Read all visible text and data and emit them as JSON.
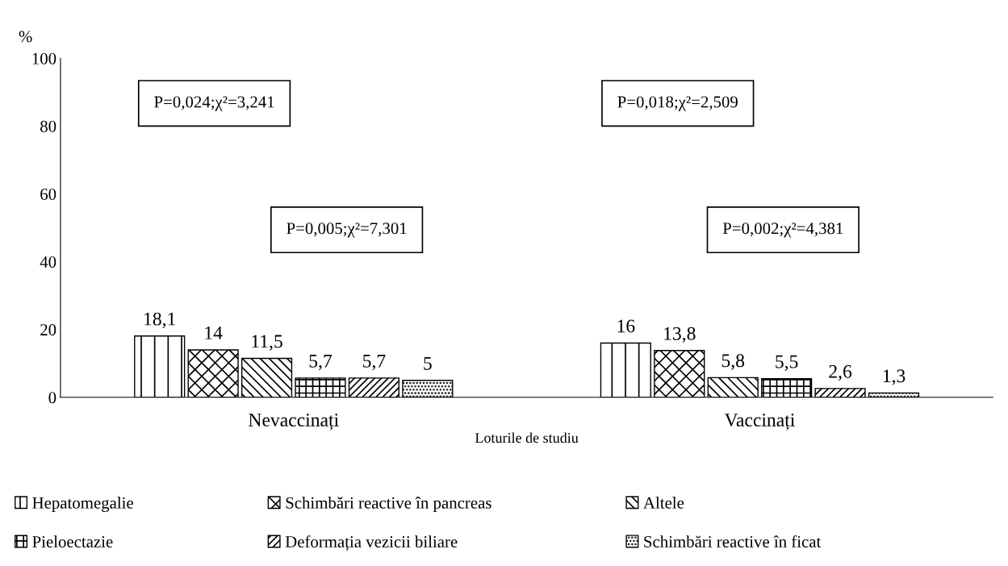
{
  "chart_data": {
    "type": "bar",
    "ylabel": "%",
    "xlabel": "Loturile de studiu",
    "categories": [
      "Nevaccinați",
      "Vaccinați"
    ],
    "series": [
      {
        "name": "Hepatomegalie",
        "color": "#000000",
        "values": [
          18.1,
          16
        ],
        "value_labels": [
          "18,1",
          "16"
        ]
      },
      {
        "name": "Schimbări reactive în pancreas",
        "color": "#000000",
        "values": [
          14,
          13.8
        ],
        "value_labels": [
          "14",
          "13,8"
        ]
      },
      {
        "name": "Altele",
        "color": "#000000",
        "values": [
          11.5,
          5.8
        ],
        "value_labels": [
          "11,5",
          "5,8"
        ]
      },
      {
        "name": "Pieloectazie",
        "color": "#000000",
        "values": [
          5.7,
          5.5
        ],
        "value_labels": [
          "5,7",
          "5,5"
        ]
      },
      {
        "name": "Deformația vezicii biliare",
        "color": "#000000",
        "values": [
          5.7,
          2.6
        ],
        "value_labels": [
          "5,7",
          "2,6"
        ]
      },
      {
        "name": "Schimbări reactive în ficat",
        "color": "#000000",
        "values": [
          5,
          1.3
        ],
        "value_labels": [
          "5",
          "1,3"
        ]
      }
    ],
    "ylim": [
      0,
      100
    ],
    "yticks": [
      0,
      20,
      40,
      60,
      80,
      100
    ],
    "grid": false,
    "legend": "bottom",
    "annotations": [
      "P=0,024;χ²=3,241",
      "P=0,018;χ²=2,509",
      "P=0,005;χ²=7,301",
      "P=0,002;χ²=4,381"
    ]
  }
}
